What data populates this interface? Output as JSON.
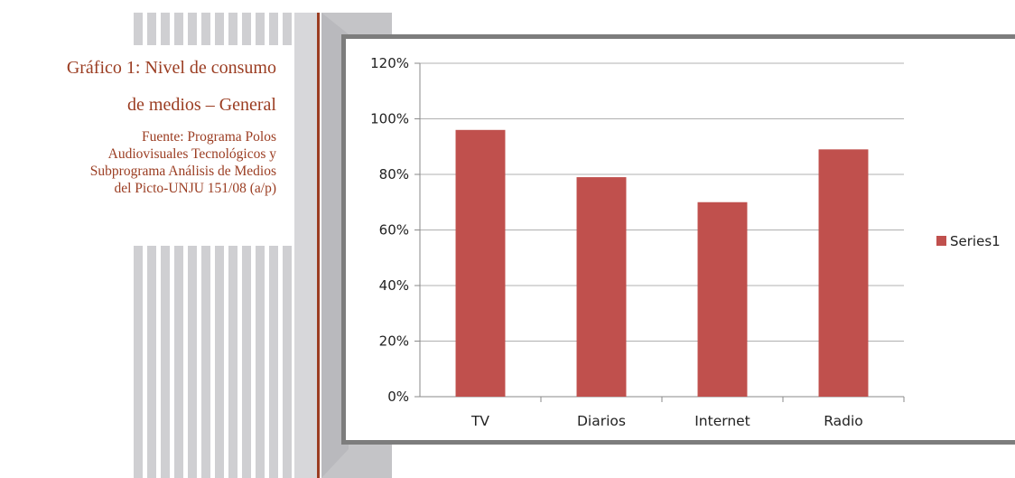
{
  "caption": {
    "title_line1": "Gráfico 1: Nivel de consumo",
    "title_line2": "de medios – General",
    "source_lines": [
      "Fuente: Programa Polos",
      "Audiovisuales Tecnológicos y",
      "Subprograma Análisis de Medios",
      "del Picto-UNJU 151/08 (a/p)"
    ]
  },
  "colors": {
    "bar": "#c0504d",
    "caption": "#9b3d22",
    "frame": "#7d7d7d",
    "decor": "#cfcfd2"
  },
  "chart_data": {
    "type": "bar",
    "categories": [
      "TV",
      "Diarios",
      "Internet",
      "Radio"
    ],
    "series": [
      {
        "name": "Series1",
        "values": [
          0.96,
          0.79,
          0.7,
          0.89
        ]
      }
    ],
    "ylim": [
      0,
      1.2
    ],
    "yticks": [
      "0%",
      "20%",
      "40%",
      "60%",
      "80%",
      "100%",
      "120%"
    ],
    "grid": true,
    "legend": "right"
  }
}
